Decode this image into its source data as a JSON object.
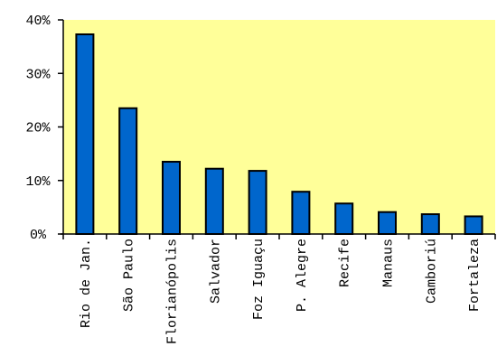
{
  "colors": {
    "plot_background": "#FFFF99",
    "bar_fill": "#0066CC",
    "bar_stroke": "#000000",
    "axis": "#000000",
    "page_background": "#FFFFFF"
  },
  "chart_data": {
    "type": "bar",
    "title": "",
    "xlabel": "",
    "ylabel": "",
    "categories": [
      "Rio de Jan.",
      "São Paulo",
      "Florianópolis",
      "Salvador",
      "Foz Iguaçu",
      "P. Alegre",
      "Recife",
      "Manaus",
      "Camboriú",
      "Fortaleza"
    ],
    "values": [
      37.3,
      23.5,
      13.5,
      12.2,
      11.8,
      7.9,
      5.7,
      4.1,
      3.7,
      3.3
    ],
    "ylim": [
      0,
      40
    ],
    "y_ticks": [
      {
        "value": 0,
        "label": "0%"
      },
      {
        "value": 10,
        "label": "10%"
      },
      {
        "value": 20,
        "label": "20%"
      },
      {
        "value": 30,
        "label": "30%"
      },
      {
        "value": 40,
        "label": "40%"
      }
    ],
    "grid": false,
    "legend": "none"
  }
}
